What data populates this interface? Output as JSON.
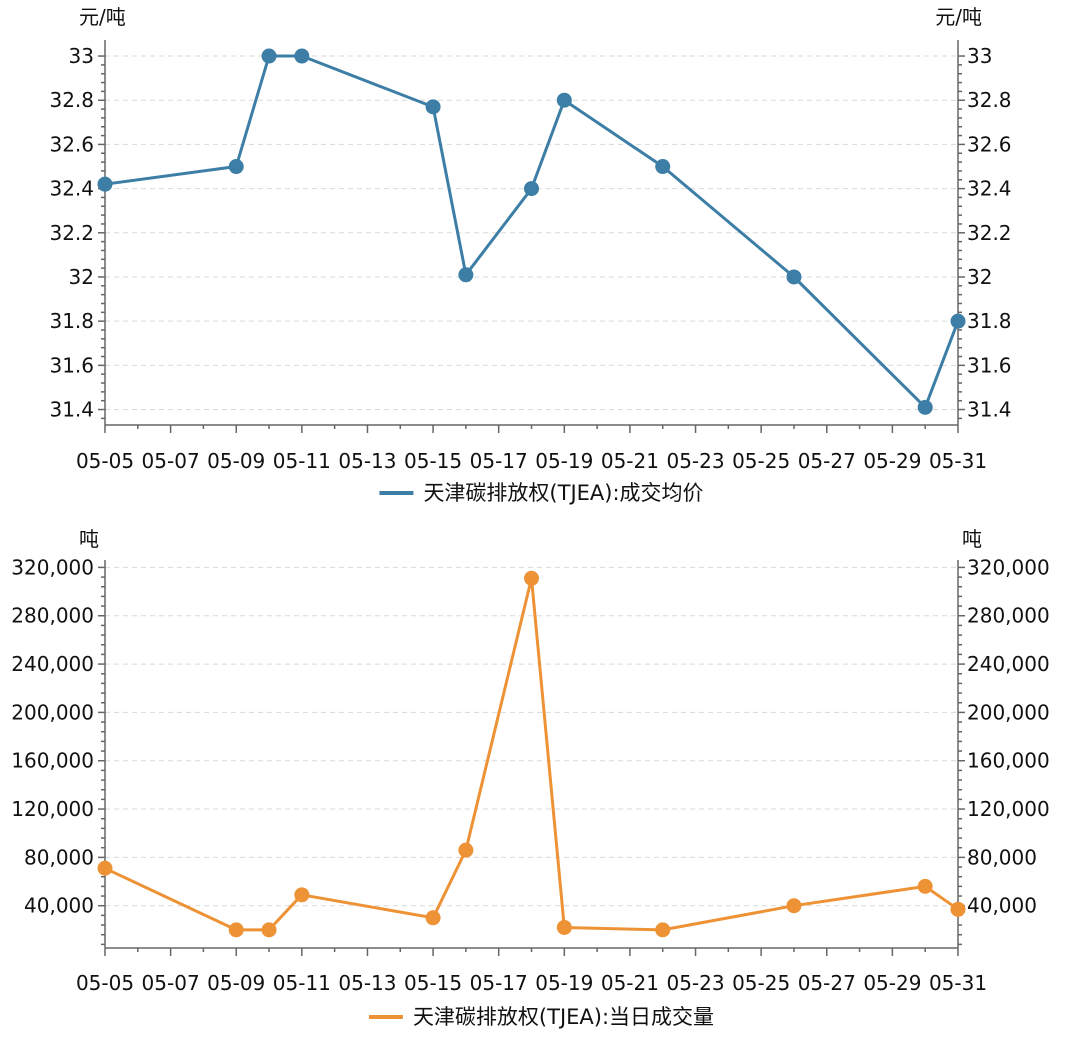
{
  "chart_data": [
    {
      "type": "line",
      "title": "",
      "x": [
        "05-05",
        "05-09",
        "05-10",
        "05-11",
        "05-15",
        "05-16",
        "05-18",
        "05-19",
        "05-22",
        "05-26",
        "05-30",
        "05-31"
      ],
      "x_tick_labels": [
        "05-05",
        "05-07",
        "05-09",
        "05-11",
        "05-13",
        "05-15",
        "05-17",
        "05-19",
        "05-21",
        "05-23",
        "05-25",
        "05-27",
        "05-29",
        "05-31"
      ],
      "x_range_days": [
        5,
        31
      ],
      "series": [
        {
          "name": "天津碳排放权(TJEA):成交均价",
          "color": "#3d7ea6",
          "values": [
            32.42,
            32.5,
            33.0,
            33.0,
            32.77,
            32.01,
            32.4,
            32.8,
            32.5,
            32.0,
            31.41,
            31.8
          ]
        }
      ],
      "ylabel_left": "元/吨",
      "ylabel_right": "元/吨",
      "ylim": [
        31.33,
        33.05
      ],
      "y_ticks": [
        31.4,
        31.6,
        31.8,
        32.0,
        32.2,
        32.4,
        32.6,
        32.8,
        33.0
      ],
      "y_tick_labels": [
        "31.4",
        "31.6",
        "31.8",
        "32",
        "32.2",
        "32.4",
        "32.6",
        "32.8",
        "33"
      ],
      "legend": "天津碳排放权(TJEA):成交均价",
      "legend_position": "bottom-center",
      "grid": true
    },
    {
      "type": "line",
      "title": "",
      "x": [
        "05-05",
        "05-09",
        "05-10",
        "05-11",
        "05-15",
        "05-16",
        "05-18",
        "05-19",
        "05-22",
        "05-26",
        "05-30",
        "05-31"
      ],
      "x_tick_labels": [
        "05-05",
        "05-07",
        "05-09",
        "05-11",
        "05-13",
        "05-15",
        "05-17",
        "05-19",
        "05-21",
        "05-23",
        "05-25",
        "05-27",
        "05-29",
        "05-31"
      ],
      "x_range_days": [
        5,
        31
      ],
      "series": [
        {
          "name": "天津碳排放权(TJEA):当日成交量",
          "color": "#ee9236",
          "values": [
            71000,
            20000,
            20000,
            49000,
            30000,
            86000,
            311000,
            22000,
            20000,
            40000,
            56000,
            37000
          ]
        }
      ],
      "ylabel_left": "吨",
      "ylabel_right": "吨",
      "ylim": [
        5000,
        322000
      ],
      "y_ticks": [
        40000,
        80000,
        120000,
        160000,
        200000,
        240000,
        280000,
        320000
      ],
      "y_tick_labels": [
        "40,000",
        "80,000",
        "120,000",
        "160,000",
        "200,000",
        "240,000",
        "280,000",
        "320,000"
      ],
      "legend": "天津碳排放权(TJEA):当日成交量",
      "legend_position": "bottom-center",
      "grid": true
    }
  ]
}
